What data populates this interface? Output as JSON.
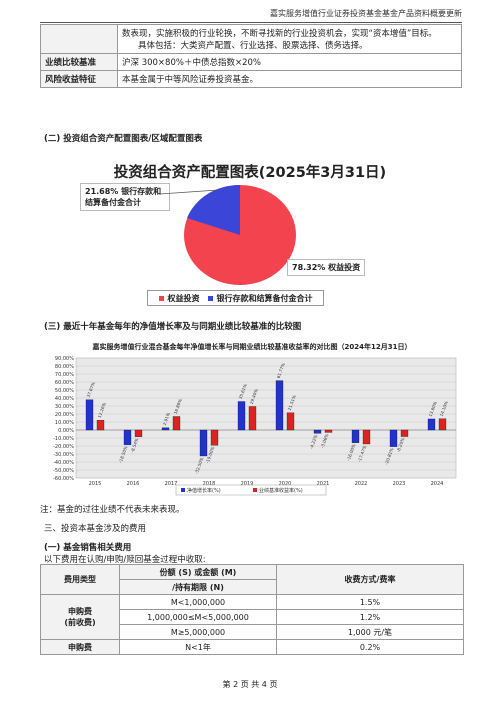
{
  "header": "嘉实服务增值行业证券投资基金基金产品资料概要更新",
  "top_table": {
    "strategy_line1": "数表现，实施积极的行业轮换，不断寻找新的行业投资机会，实现“资本增值”目标。",
    "strategy_line2": "具体包括：大类资产配置、行业选择、股票选择、债务选择。",
    "benchmark_label": "业绩比较基准",
    "benchmark_value": "沪深 300×80%＋中债总指数×20%",
    "risk_label": "风险收益特征",
    "risk_value": "本基金属于中等风险证券投资基金。"
  },
  "section2_heading": "(二) 投资组合资产配置图表/区域配置图表",
  "pie": {
    "title": "投资组合资产配置图表(2025年3月31日)",
    "label_bank": "21.68% 银行存款和结算备付金合计",
    "label_equity": "78.32% 权益投资",
    "legend": [
      "权益投资",
      "银行存款和结算备付金合计"
    ],
    "colors": {
      "equity": "#f2434e",
      "bank": "#3b46d8"
    }
  },
  "section3_heading": "(三) 最近十年基金每年的净值增长率及与同期业绩比较基准的比较图",
  "chart_data": {
    "type": "bar",
    "title": "嘉实服务增值行业混合基金每年净值增长率与同期业绩比较基准收益率的对比图（2024年12月31日）",
    "categories": [
      "2015",
      "2016",
      "2017",
      "2018",
      "2019",
      "2020",
      "2021",
      "2022",
      "2023",
      "2024"
    ],
    "series": [
      {
        "name": "净值增长率(%)",
        "values": [
          37.87,
          -18.5,
          2.91,
          -32.5,
          35.61,
          61.77,
          -4.22,
          -16.0,
          -20.81,
          13.8
        ],
        "labels": [
          "37.87%",
          "-18.50%",
          "2.91%",
          "-32.50%",
          "35.61%",
          "61.77%",
          "-4.22%",
          "-16.00%",
          "-20.81%",
          "13.80%"
        ]
      },
      {
        "name": "业绩基准收益率(%)",
        "values": [
          12.26,
          -8.54,
          16.89,
          -19.0,
          29.4,
          21.51,
          -3.06,
          -17.47,
          -8.2,
          14.1
        ],
        "labels": [
          "12.26%",
          "-8.54%",
          "16.89%",
          "-19.00%",
          "29.40%",
          "21.51%",
          "-3.06%",
          "-17.47%",
          "-8.20%",
          "14.10%"
        ]
      }
    ],
    "ylim": [
      -60,
      90
    ],
    "yticks": [
      "90.00%",
      "80.00%",
      "70.00%",
      "60.00%",
      "50.00%",
      "40.00%",
      "30.00%",
      "20.00%",
      "10.00%",
      "0.00%",
      "-10.00%",
      "-20.00%",
      "-30.00%",
      "-40.00%",
      "-50.00%",
      "-60.00%"
    ],
    "colors": {
      "nav": "#2233cc",
      "bench": "#dd2222"
    }
  },
  "note": "注：基金的过往业绩不代表未来表现。",
  "section_fee": "三、投资本基金涉及的费用",
  "fee_sub": "(一) 基金销售相关费用",
  "fee_intro": "以下费用在认购/申购/赎回基金过程中收取:",
  "fee_table": {
    "h_type": "费用类型",
    "h_amount1": "份额 (S) 或金额 (M)",
    "h_amount2": "/持有期限 (N)",
    "h_rate": "收费方式/费率",
    "sub_name": "申购费",
    "sub_name2": "(前收费)",
    "rows": [
      {
        "amount": "M<1,000,000",
        "rate": "1.5%"
      },
      {
        "amount": "1,000,000≤M<5,000,000",
        "rate": "1.2%"
      },
      {
        "amount": "M≥5,000,000",
        "rate": "1,000 元/笔"
      }
    ],
    "last_name": "申购费",
    "last_amount": "N<1年",
    "last_rate": "0.2%"
  },
  "footer": "第 2 页 共 4 页"
}
